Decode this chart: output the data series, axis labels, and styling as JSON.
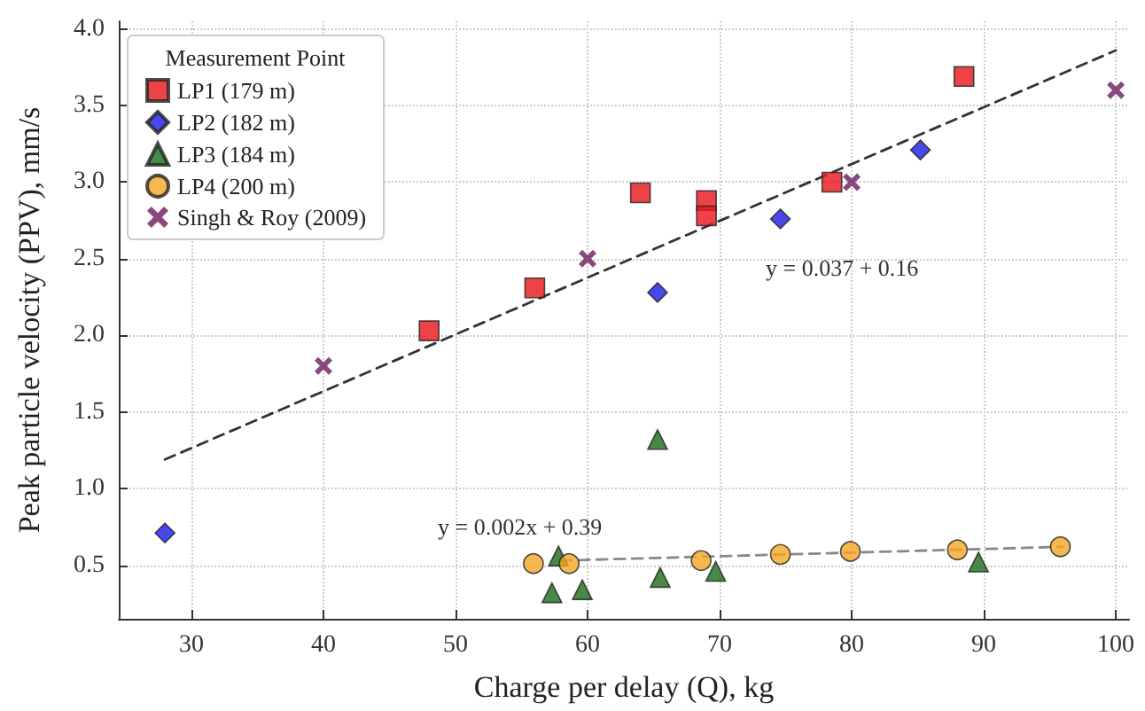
{
  "chart_data": {
    "type": "scatter",
    "xlabel": "Charge per delay (Q), kg",
    "ylabel": "Peak particle velocity (PPV), mm/s",
    "legend_title": "Measurement Point",
    "legend": "top left",
    "grid": true,
    "xlim": [
      24.5,
      101
    ],
    "xticks": [
      30,
      40,
      50,
      60,
      70,
      80,
      90,
      100
    ],
    "ylim": [
      0.15,
      4.05
    ],
    "yticks": [
      0.5,
      {
        "value": 1,
        "label": "1.0"
      },
      1.5,
      {
        "value": 2,
        "label": "2.0"
      },
      2.5,
      {
        "value": 3,
        "label": "3.0"
      },
      3.5,
      {
        "value": 4,
        "label": "4.0"
      }
    ],
    "annotations": [
      "y = 0.037 + 0.16",
      "y = 0.002x + 0.39"
    ],
    "series": [
      {
        "name": "LP1 (179 m)",
        "color": "#e8141a",
        "marker": "square",
        "x": [
          48,
          56,
          64,
          69,
          69,
          78.5,
          88.5
        ],
        "values": [
          2.03,
          2.31,
          2.93,
          2.88,
          2.78,
          3.0,
          3.69
        ]
      },
      {
        "name": "LP2 (182 m)",
        "color": "#1a1ae6",
        "marker": "diamond",
        "x": [
          28,
          65.3,
          74.6,
          85.2
        ],
        "values": [
          0.71,
          2.28,
          2.76,
          3.21
        ]
      },
      {
        "name": "LP3 (184 m)",
        "color": "#1a6b1a",
        "marker": "triangle",
        "x": [
          57.3,
          57.8,
          59.6,
          65.3,
          65.5,
          69.7,
          89.6
        ],
        "values": [
          0.32,
          0.56,
          0.34,
          1.32,
          0.42,
          0.46,
          0.52
        ]
      },
      {
        "name": "LP4 (200 m)",
        "color": "#f5a623",
        "marker": "circle",
        "x": [
          55.9,
          58.6,
          68.6,
          74.6,
          79.9,
          88,
          95.8
        ],
        "values": [
          0.51,
          0.51,
          0.53,
          0.57,
          0.59,
          0.6,
          0.62
        ]
      },
      {
        "name": "Singh & Roy (2009)",
        "color": "#6b1a5e",
        "marker": "cross",
        "x": [
          40,
          60,
          80,
          100
        ],
        "values": [
          1.8,
          2.5,
          3.0,
          3.6
        ]
      },
      {
        "type": "line",
        "color": "#333333",
        "marker": "none",
        "line_style": "dashed",
        "x": [
          28,
          100
        ],
        "values": [
          1.19,
          3.86
        ]
      },
      {
        "type": "line",
        "color": "#888888",
        "marker": "none",
        "line_style": "dashed",
        "x": [
          58,
          96
        ],
        "values": [
          0.53,
          0.62
        ]
      }
    ]
  }
}
